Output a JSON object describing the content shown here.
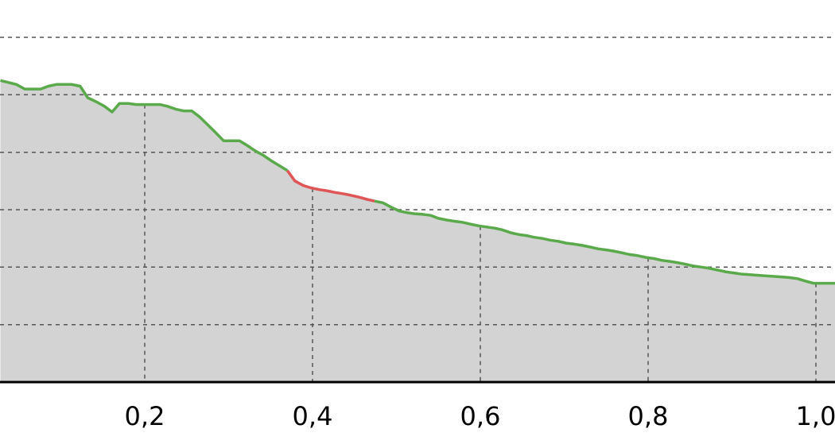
{
  "chart_data": {
    "type": "area",
    "title": "",
    "xlabel": "",
    "ylabel": "",
    "x_tick_labels": [
      "0,2",
      "0,4",
      "0,6",
      "0,8",
      "1,0"
    ],
    "x_ticks": [
      0.2,
      0.4,
      0.6,
      0.8,
      1.0
    ],
    "xlim": [
      0.028,
      1.023
    ],
    "ylim": [
      0,
      6.65
    ],
    "y_gridlines": [
      1,
      2,
      3,
      4,
      5,
      6
    ],
    "grid": true,
    "legend": "none",
    "fill_color": "#d3d3d3",
    "series": [
      {
        "color": "#5aa94a",
        "highlight_color": "#e05555",
        "highlight_range": [
          0.375,
          0.475
        ],
        "x": [
          0.028,
          0.047,
          0.057,
          0.076,
          0.085,
          0.095,
          0.103,
          0.113,
          0.123,
          0.132,
          0.142,
          0.152,
          0.161,
          0.17,
          0.18,
          0.19,
          0.199,
          0.209,
          0.218,
          0.227,
          0.237,
          0.246,
          0.256,
          0.265,
          0.275,
          0.284,
          0.294,
          0.303,
          0.313,
          0.322,
          0.332,
          0.341,
          0.351,
          0.36,
          0.37,
          0.379,
          0.389,
          0.398,
          0.408,
          0.417,
          0.427,
          0.436,
          0.446,
          0.455,
          0.465,
          0.474,
          0.484,
          0.493,
          0.503,
          0.512,
          0.522,
          0.531,
          0.541,
          0.55,
          0.56,
          0.569,
          0.579,
          0.588,
          0.598,
          0.607,
          0.617,
          0.626,
          0.636,
          0.645,
          0.655,
          0.664,
          0.674,
          0.683,
          0.693,
          0.702,
          0.712,
          0.721,
          0.731,
          0.74,
          0.75,
          0.759,
          0.769,
          0.778,
          0.788,
          0.797,
          0.807,
          0.816,
          0.826,
          0.835,
          0.845,
          0.854,
          0.864,
          0.873,
          0.883,
          0.892,
          0.902,
          0.911,
          0.921,
          0.93,
          0.94,
          0.949,
          0.959,
          0.968,
          0.978,
          0.987,
          0.997,
          1.006,
          1.016,
          1.023
        ],
        "y": [
          5.25,
          5.18,
          5.1,
          5.1,
          5.15,
          5.18,
          5.18,
          5.18,
          5.15,
          4.95,
          4.88,
          4.8,
          4.7,
          4.85,
          4.85,
          4.83,
          4.83,
          4.83,
          4.83,
          4.8,
          4.75,
          4.72,
          4.72,
          4.62,
          4.48,
          4.35,
          4.2,
          4.2,
          4.2,
          4.12,
          4.02,
          3.95,
          3.85,
          3.77,
          3.68,
          3.5,
          3.42,
          3.38,
          3.35,
          3.33,
          3.3,
          3.28,
          3.25,
          3.22,
          3.18,
          3.15,
          3.12,
          3.05,
          2.98,
          2.95,
          2.93,
          2.92,
          2.9,
          2.85,
          2.82,
          2.8,
          2.78,
          2.75,
          2.72,
          2.7,
          2.68,
          2.65,
          2.6,
          2.57,
          2.55,
          2.52,
          2.5,
          2.47,
          2.45,
          2.42,
          2.4,
          2.38,
          2.35,
          2.32,
          2.3,
          2.28,
          2.25,
          2.22,
          2.2,
          2.17,
          2.15,
          2.12,
          2.1,
          2.08,
          2.05,
          2.02,
          2.0,
          1.98,
          1.95,
          1.92,
          1.9,
          1.88,
          1.87,
          1.86,
          1.85,
          1.84,
          1.83,
          1.82,
          1.8,
          1.76,
          1.72,
          1.72,
          1.72,
          1.72
        ]
      }
    ]
  }
}
